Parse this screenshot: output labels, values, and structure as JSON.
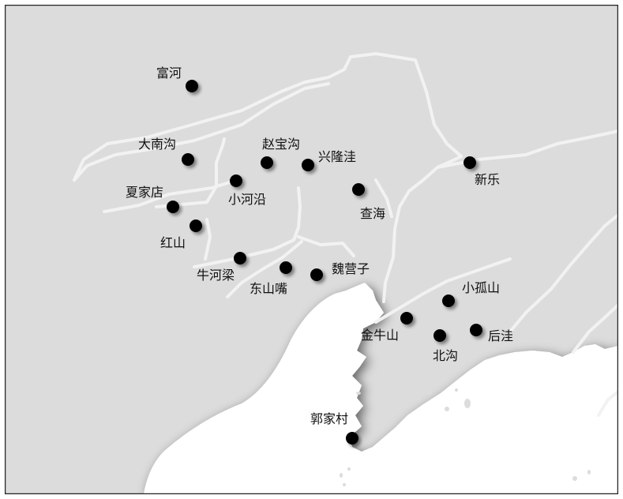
{
  "colors": {
    "land": "#dcdcdc",
    "sea": "#ffffff",
    "river": "#f2f2f2",
    "border": "#222222",
    "marker": "#000000",
    "label": "#111111"
  },
  "sites": [
    {
      "id": "fuhe",
      "name": "富河"
    },
    {
      "id": "danangou",
      "name": "大南沟"
    },
    {
      "id": "xiajiadian",
      "name": "夏家店"
    },
    {
      "id": "hongshan",
      "name": "红山"
    },
    {
      "id": "niuheliang",
      "name": "牛河梁"
    },
    {
      "id": "xiaoheyan",
      "name": "小河沿"
    },
    {
      "id": "zhaobaogou",
      "name": "赵宝沟"
    },
    {
      "id": "xinglongwa",
      "name": "兴隆洼"
    },
    {
      "id": "chahai",
      "name": "查海"
    },
    {
      "id": "dongshanzui",
      "name": "东山嘴"
    },
    {
      "id": "weiyingzi",
      "name": "魏营子"
    },
    {
      "id": "xinle",
      "name": "新乐"
    },
    {
      "id": "xiaogushan",
      "name": "小孤山"
    },
    {
      "id": "jinniushan",
      "name": "金牛山"
    },
    {
      "id": "beigou",
      "name": "北沟"
    },
    {
      "id": "houwa",
      "name": "后洼"
    },
    {
      "id": "guojiacun",
      "name": "郭家村"
    }
  ]
}
